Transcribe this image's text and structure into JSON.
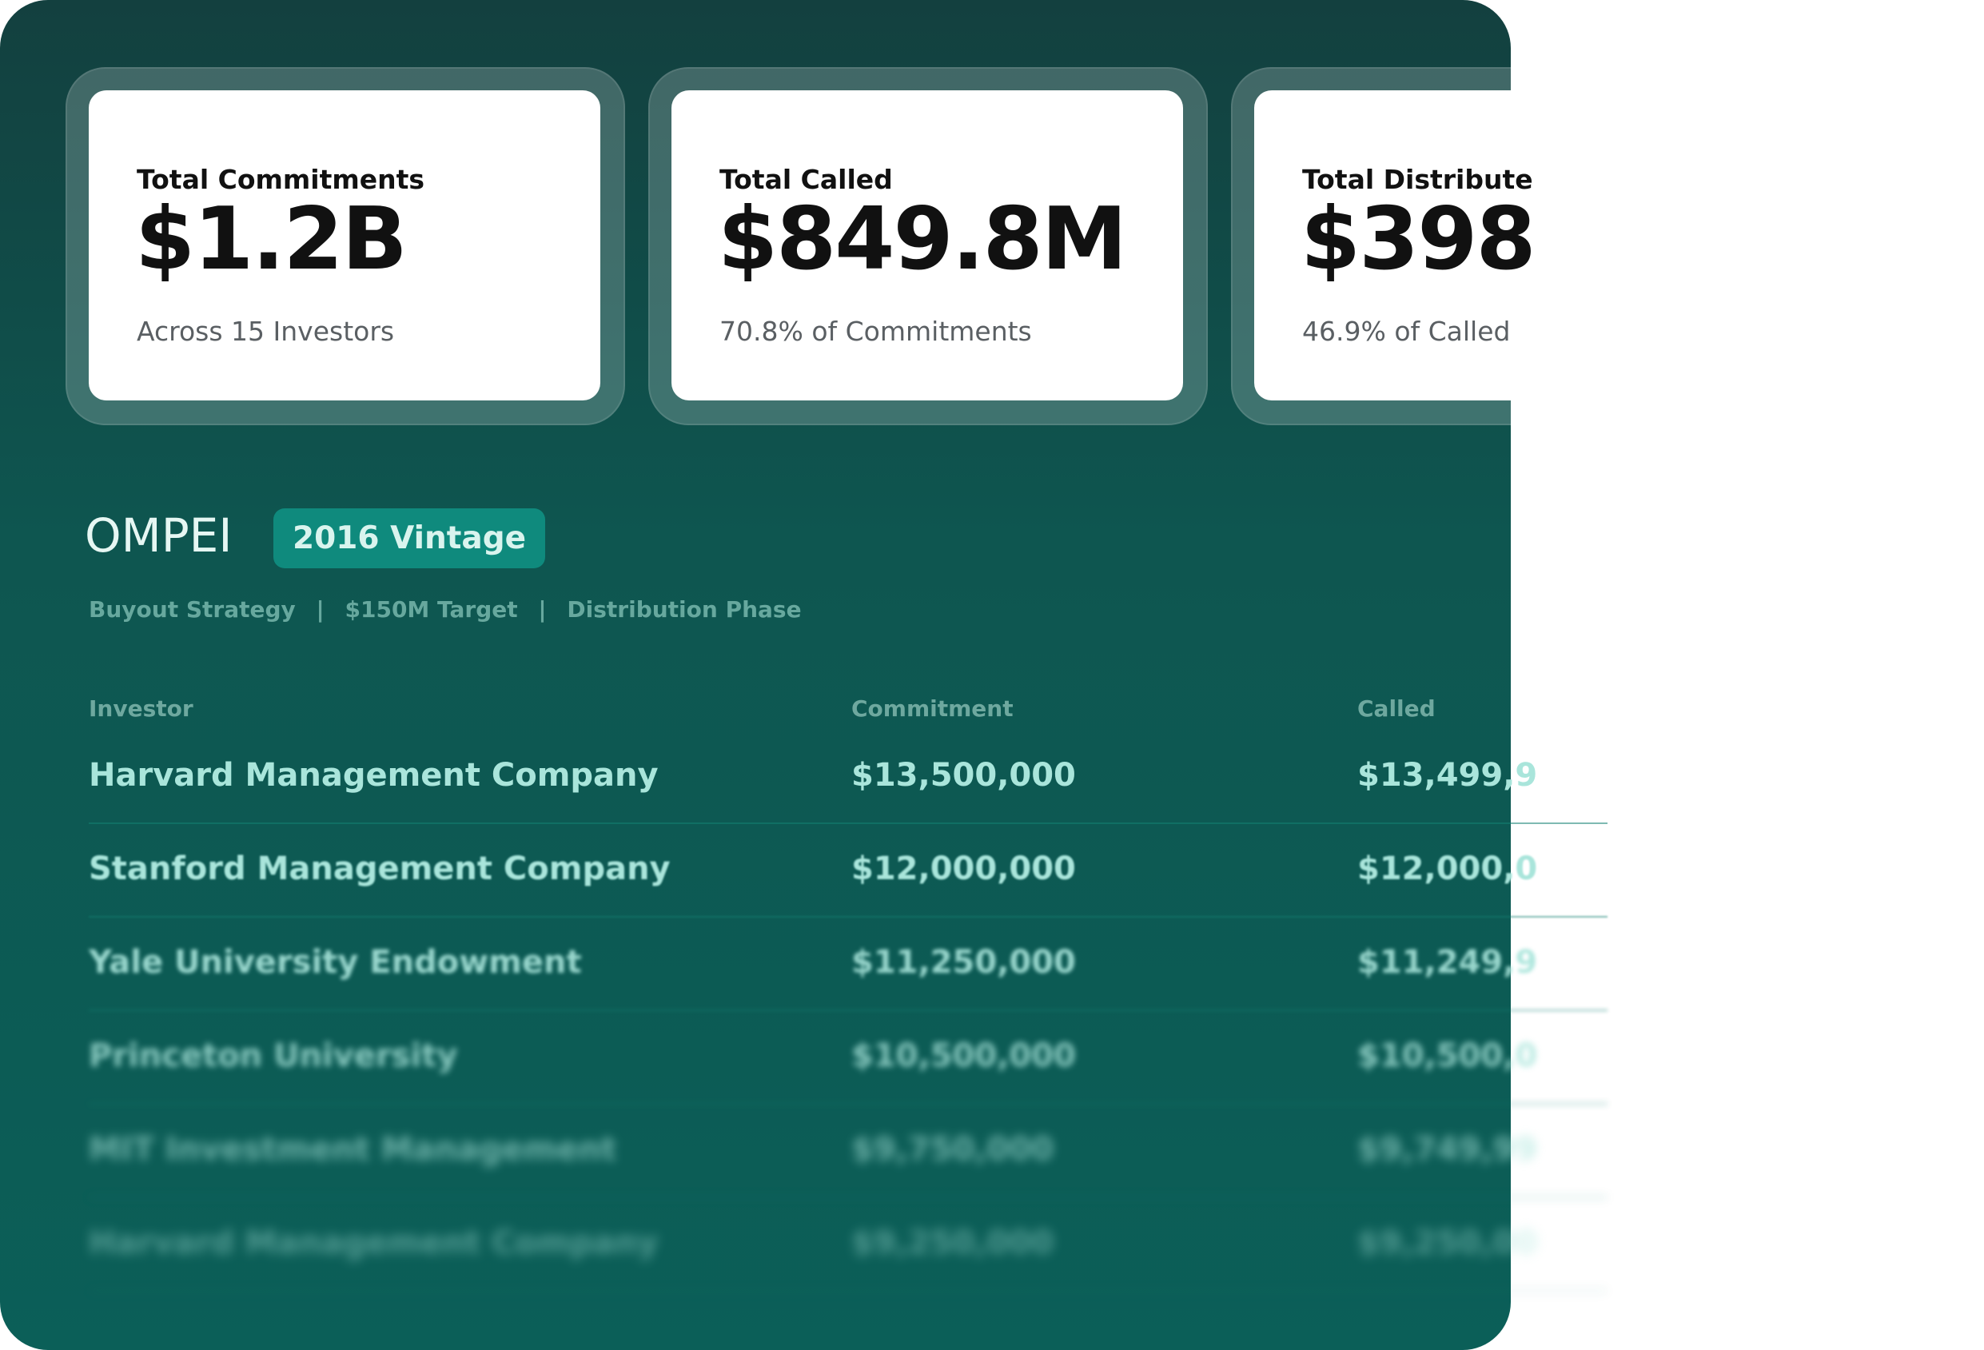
{
  "colors": {
    "background_top": "#13403f",
    "background_bottom": "#0b5f58",
    "badge": "#0f8a7d",
    "accent_text": "#a9e5db"
  },
  "kpis": [
    {
      "label": "Total Commitments",
      "value": "$1.2B",
      "sub": "Across 15 Investors"
    },
    {
      "label": "Total Called",
      "value": "$849.8M",
      "sub": "70.8% of Commitments"
    },
    {
      "label": "Total Distribute",
      "value": "$398",
      "sub": "46.9% of Called"
    }
  ],
  "fund": {
    "name": "OMPEI",
    "vintage": "2016 Vintage",
    "strategy": "Buyout Strategy",
    "separator": "|",
    "target": "$150M Target",
    "phase": "Distribution Phase"
  },
  "table": {
    "headers": {
      "investor": "Investor",
      "commitment": "Commitment",
      "called": "Called"
    },
    "rows": [
      {
        "investor": "Harvard Management Company",
        "commitment": "$13,500,000",
        "called": "$13,499,9"
      },
      {
        "investor": "Stanford Management Company",
        "commitment": "$12,000,000",
        "called": "$12,000,0"
      },
      {
        "investor": "Yale University Endowment",
        "commitment": "$11,250,000",
        "called": "$11,249,9"
      },
      {
        "investor": "Princeton University",
        "commitment": "$10,500,000",
        "called": "$10,500,0"
      },
      {
        "investor": "MIT Investment Management",
        "commitment": "$9,750,000",
        "called": "$9,749,99"
      },
      {
        "investor": "Harvard Management Company",
        "commitment": "$9,250,000",
        "called": "$9,250,00"
      }
    ]
  }
}
